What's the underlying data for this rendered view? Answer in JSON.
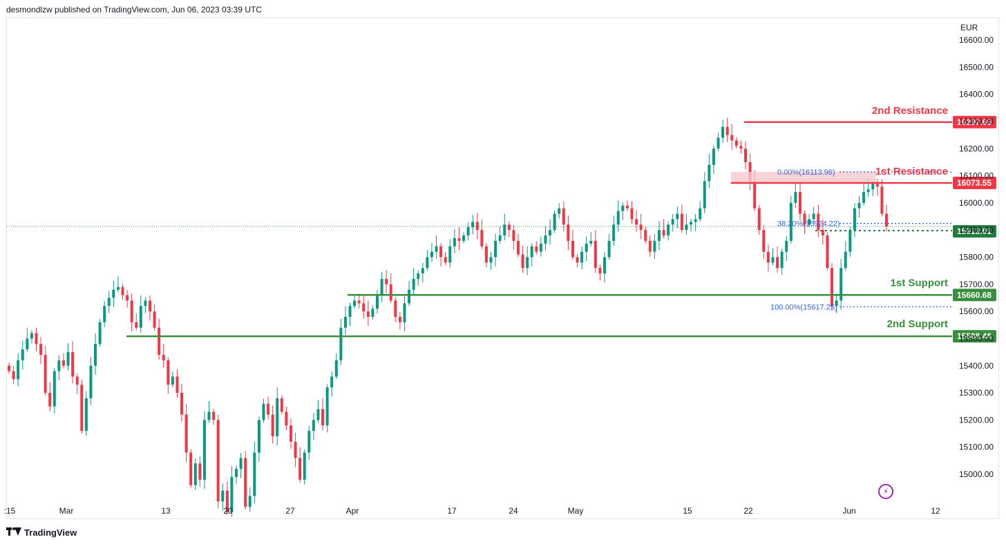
{
  "header": {
    "publisher": "desmondlzw published on TradingView.com, Jun 06, 2023 03:39 UTC"
  },
  "footer": {
    "brand": "TradingView"
  },
  "icons": {
    "logo": "tradingview-logo-icon",
    "alert": "lightning-bolt-icon"
  },
  "colors": {
    "up": "#089981",
    "down": "#f23645",
    "resistance": "#f23645",
    "support": "#388e3c",
    "fib": "#2962ff",
    "current": "#1e7c3c",
    "zone": "#f7c9cc"
  },
  "chart_data": {
    "type": "candlestick",
    "currency": "EUR",
    "ylim": [
      14930,
      16660
    ],
    "y_ticks": [
      "16600.00",
      "16500.00",
      "16400.00",
      "16300.00",
      "16200.00",
      "16100.00",
      "16000.00",
      "15900.00",
      "15800.00",
      "15700.00",
      "15600.00",
      "15500.00",
      "15400.00",
      "15300.00",
      "15200.00",
      "15100.00",
      "15000.00"
    ],
    "x_ticks": [
      ":15",
      "Mar",
      "13",
      "20",
      "27",
      "Apr",
      "17",
      "24",
      "May",
      "15",
      "22",
      "Jun",
      "12"
    ],
    "levels": [
      {
        "name": "2nd Resistance",
        "value": 16297.65,
        "label": "16297.65",
        "kind": "resistance"
      },
      {
        "name": "1st Resistance",
        "value": 16073.55,
        "label": "16073.55",
        "kind": "resistance"
      },
      {
        "name": "1st Support",
        "value": 15660.68,
        "label": "15660.68",
        "kind": "support"
      },
      {
        "name": "2nd Support",
        "value": 15508.46,
        "label": "15508.46",
        "kind": "support"
      }
    ],
    "current_price": {
      "value": 15913.01,
      "label": "15913.01"
    },
    "fibonacci": [
      {
        "label": "0.00%(16113.96)",
        "value": 16113.96
      },
      {
        "label": "38.20%(15924.22)",
        "value": 15924.22
      },
      {
        "label": "100.00%(15617.25)",
        "value": 15617.25
      }
    ],
    "close_series": [
      15380,
      15350,
      15420,
      15460,
      15500,
      15520,
      15480,
      15440,
      15300,
      15250,
      15380,
      15420,
      15400,
      15450,
      15360,
      15330,
      15160,
      15280,
      15400,
      15480,
      15560,
      15620,
      15650,
      15680,
      15690,
      15660,
      15640,
      15560,
      15540,
      15620,
      15640,
      15600,
      15540,
      15440,
      15420,
      15330,
      15360,
      15300,
      15220,
      15080,
      14960,
      15040,
      14980,
      15200,
      15230,
      15200,
      14900,
      14940,
      14860,
      14990,
      15020,
      15060,
      14880,
      14920,
      15080,
      15200,
      15260,
      15220,
      15140,
      15280,
      15230,
      15180,
      15120,
      15060,
      14980,
      15080,
      15160,
      15200,
      15240,
      15180,
      15320,
      15360,
      15420,
      15540,
      15580,
      15620,
      15640,
      15630,
      15600,
      15580,
      15610,
      15660,
      15720,
      15700,
      15640,
      15580,
      15560,
      15630,
      15680,
      15720,
      15740,
      15760,
      15800,
      15820,
      15840,
      15800,
      15780,
      15840,
      15870,
      15860,
      15880,
      15910,
      15930,
      15900,
      15840,
      15780,
      15800,
      15860,
      15880,
      15920,
      15900,
      15860,
      15810,
      15760,
      15800,
      15840,
      15820,
      15850,
      15880,
      15900,
      15960,
      15980,
      15920,
      15860,
      15800,
      15780,
      15820,
      15850,
      15860,
      15760,
      15740,
      15800,
      15860,
      15920,
      15970,
      15990,
      15980,
      15940,
      15920,
      15900,
      15860,
      15820,
      15860,
      15900,
      15880,
      15920,
      15940,
      15960,
      15900,
      15920,
      15930,
      15940,
      15980,
      16080,
      16140,
      16200,
      16240,
      16280,
      16250,
      16230,
      16210,
      16200,
      16150,
      16080,
      15980,
      15900,
      15820,
      15780,
      15800,
      15760,
      15820,
      15860,
      16000,
      16040,
      15960,
      15920,
      15940,
      15960,
      15900,
      15880,
      15760,
      15620,
      15640,
      15760,
      15820,
      15900,
      15980,
      16000,
      16040,
      16050,
      16070,
      16060,
      15960,
      15913
    ]
  }
}
